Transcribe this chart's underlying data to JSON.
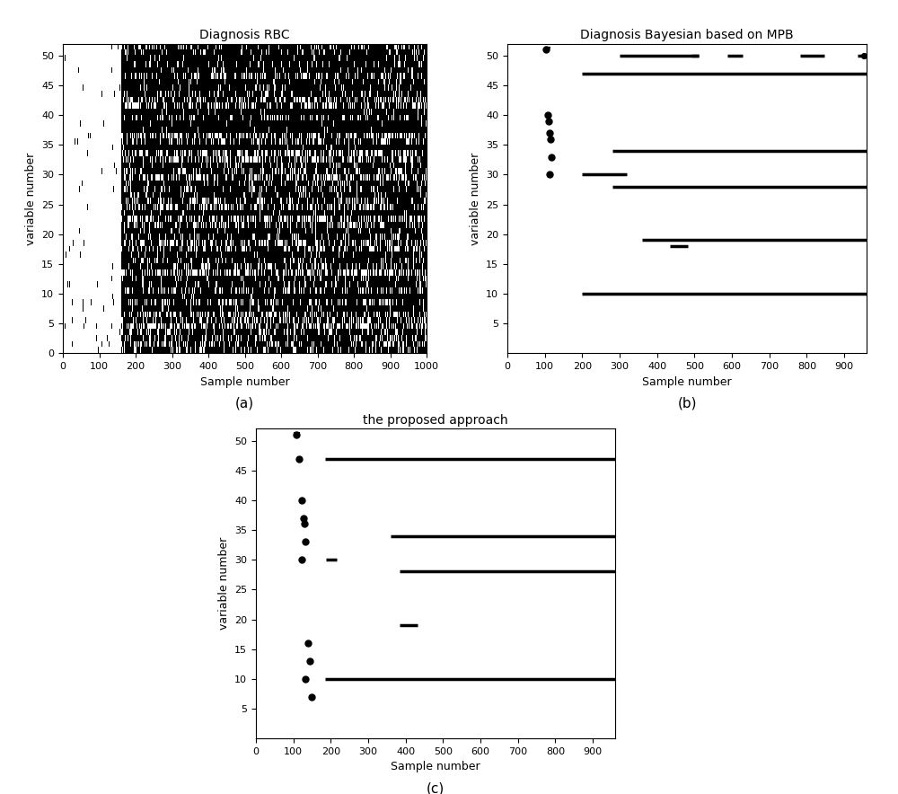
{
  "title_a": "Diagnosis RBC",
  "title_b": "Diagnosis Bayesian based on MPB",
  "title_c": "the proposed approach",
  "xlabel": "Sample number",
  "ylabel": "variable number",
  "label_a": "(a)",
  "label_b": "(b)",
  "label_c": "(c)",
  "xlim_a": [
    0,
    1000
  ],
  "ylim_a": [
    0,
    52
  ],
  "xlim_bc": [
    0,
    960
  ],
  "ylim_bc": [
    0,
    52
  ],
  "yticks_a": [
    0,
    5,
    10,
    15,
    20,
    25,
    30,
    35,
    40,
    45,
    50
  ],
  "yticks_bc": [
    5,
    10,
    15,
    20,
    25,
    30,
    35,
    40,
    45,
    50
  ],
  "xticks_a": [
    0,
    100,
    200,
    300,
    400,
    500,
    600,
    700,
    800,
    900,
    1000
  ],
  "xticks_bc": [
    0,
    100,
    200,
    300,
    400,
    500,
    600,
    700,
    800,
    900
  ],
  "background": "#ffffff",
  "dot_color": "#000000",
  "line_lw": 2.5,
  "pre_dot_size": 25
}
